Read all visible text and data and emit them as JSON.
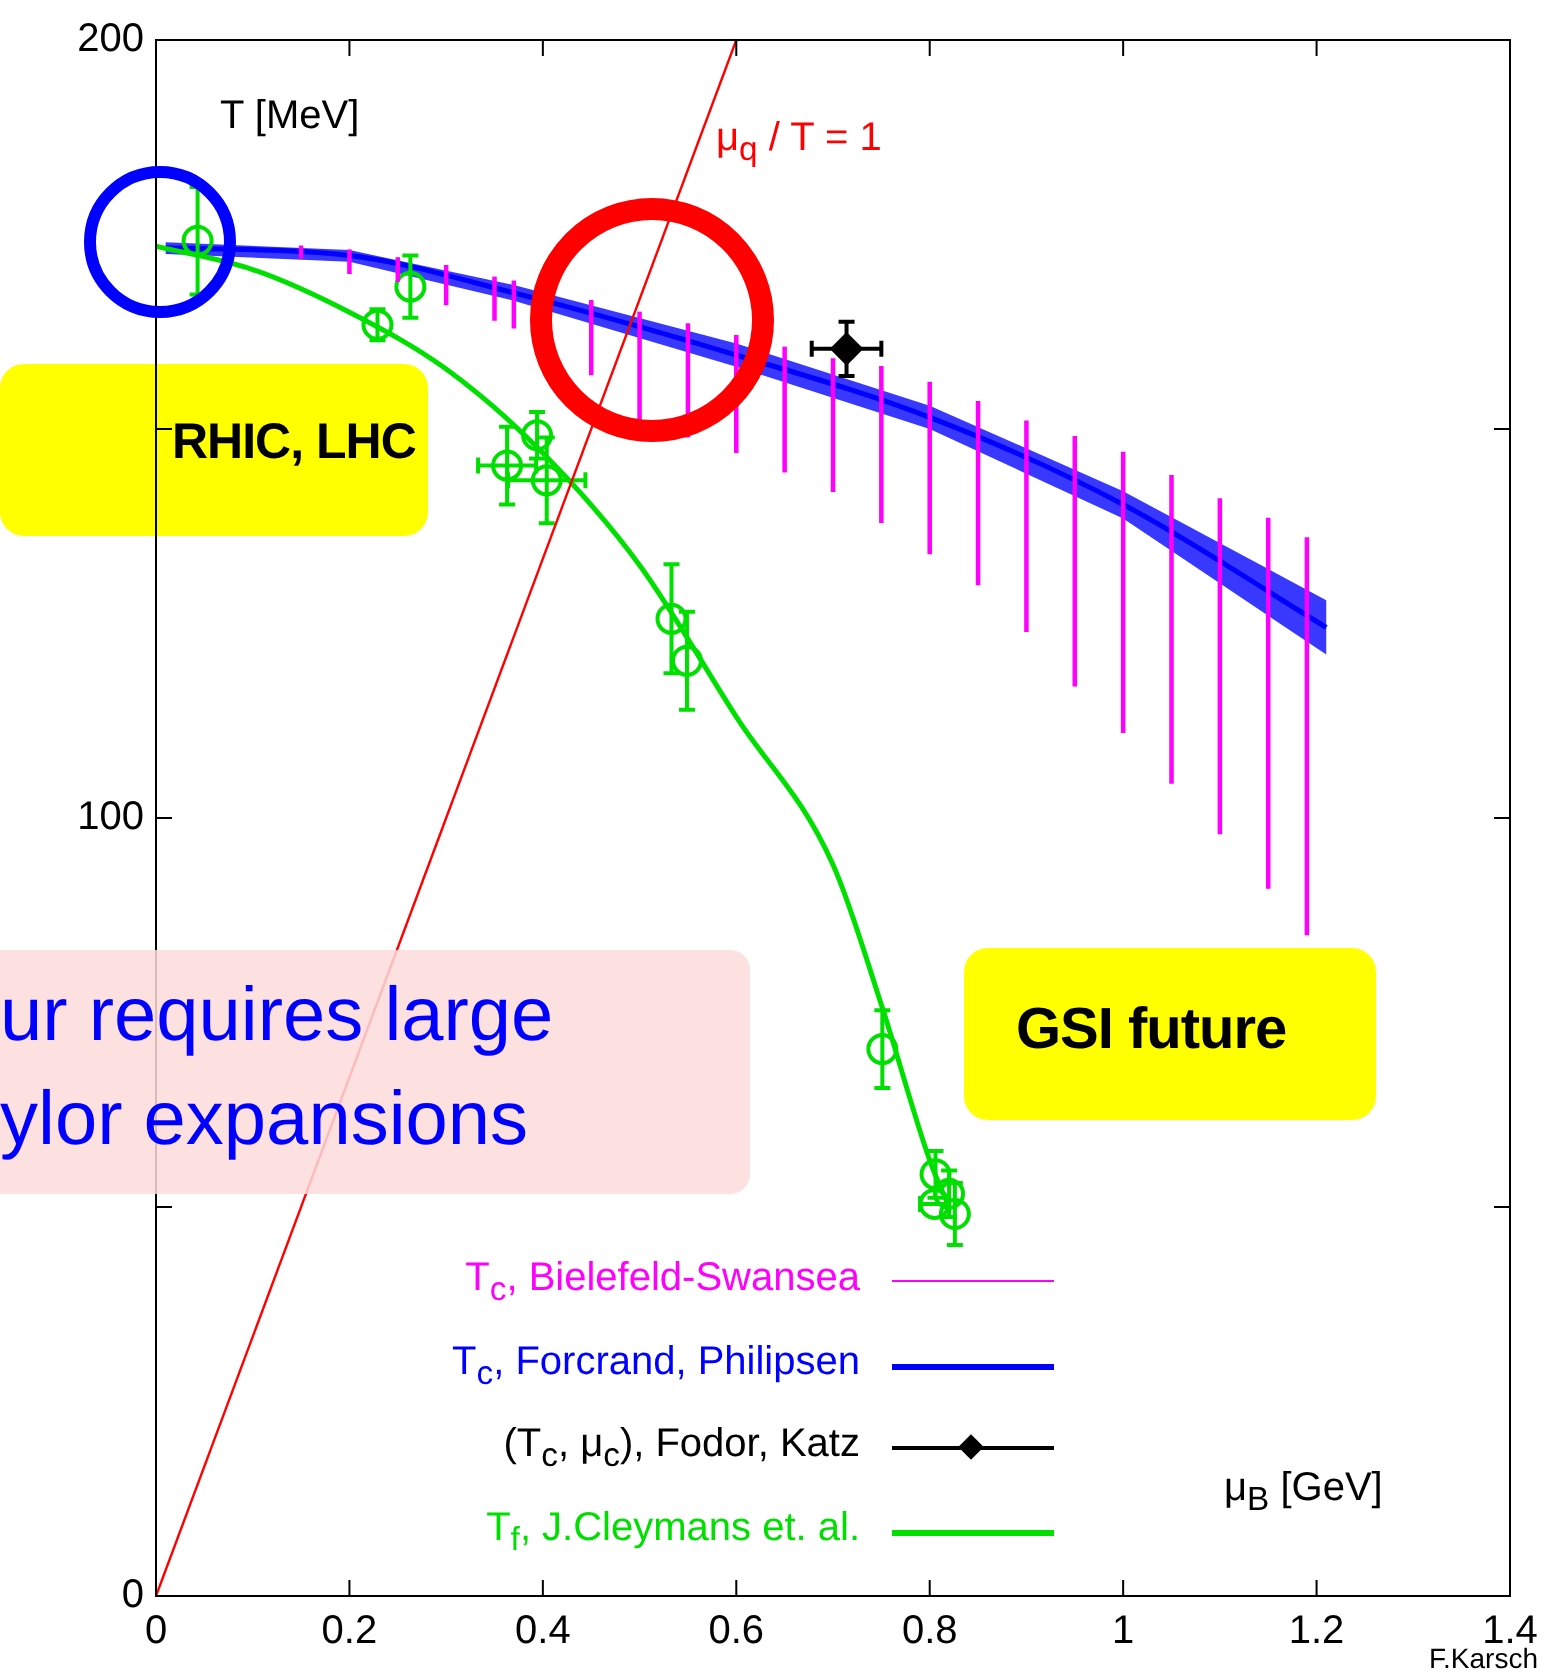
{
  "chart_data": {
    "type": "line",
    "xlabel": "μ$_{B}$ [GeV]",
    "ylabel": "T [MeV]",
    "xlim": [
      0,
      1.4
    ],
    "xticks": [
      0,
      0.2,
      0.4,
      0.6,
      0.8,
      1,
      1.2,
      1.4
    ],
    "ylim": [
      0,
      200
    ],
    "yticks": [
      0,
      {
        "value": 50,
        "label": null
      },
      100,
      {
        "value": 150,
        "label": null
      },
      200
    ],
    "grid": false,
    "legend": "bottom",
    "annotations": [
      "μ$_{q}$ / T = 1",
      "RHIC, LHC",
      "GSI future",
      "ur requires large",
      "ylor expansions",
      "F.Karsch"
    ],
    "series": [
      {
        "name": "T$_{c}$, Bielefeld-Swansea",
        "type": "bar",
        "color": "#ff00ff",
        "x": [
          0.15,
          0.2,
          0.25,
          0.3,
          0.35,
          0.37,
          0.45,
          0.5,
          0.55,
          0.6,
          0.65,
          0.7,
          0.75,
          0.8,
          0.85,
          0.9,
          0.95,
          1.0,
          1.05,
          1.1,
          1.15,
          1.19
        ],
        "base": [
          172,
          170,
          169,
          166,
          164,
          163,
          157,
          151,
          149,
          147,
          144.5,
          142,
          138,
          134,
          130,
          124,
          117,
          111,
          104.5,
          98,
          91,
          85
        ],
        "values": [
          1.5,
          3,
          3,
          5,
          5.5,
          6,
          9.5,
          14,
          14.5,
          15,
          16,
          17,
          20,
          22,
          23.5,
          27,
          32,
          36,
          39.5,
          43,
          47.5,
          51
        ]
      },
      {
        "name": "T$_{c}$, Forcrand, Philipsen",
        "color": "#0000ff",
        "x": [
          0.01,
          0.2,
          0.37,
          0.6,
          0.8,
          1.0,
          1.21
        ],
        "values": [
          173.3,
          172.3,
          167.5,
          159.5,
          151.5,
          140.3,
          124.5
        ],
        "upper": [
          174,
          173,
          168.5,
          161,
          153,
          142,
          128
        ],
        "lower": [
          172.5,
          171.5,
          166.5,
          158,
          150,
          138.5,
          121
        ]
      },
      {
        "name": "(T$_{c}$, μ$_{c}$), Fodor, Katz",
        "type": "scatter",
        "color": "#000000",
        "marker": "diamond",
        "x": [
          0.714
        ],
        "values": [
          160.3
        ],
        "errors": [
          3.5
        ],
        "xerrors": [
          0.036
        ]
      },
      {
        "name": "T$_{f}$, J.Cleymans et. al.",
        "color": "#00e000",
        "x": [
          0,
          0.1,
          0.2,
          0.3,
          0.4,
          0.5,
          0.6,
          0.7,
          0.75,
          0.8,
          0.82
        ],
        "values": [
          173.5,
          170.5,
          165,
          157.7,
          146.9,
          132.5,
          113,
          94,
          76,
          56,
          50
        ]
      },
      {
        "type": "scatter",
        "color": "#00e000",
        "marker": "circle",
        "x": [
          0.043,
          0.229,
          0.263,
          0.394,
          0.363,
          0.404,
          0.533,
          0.549,
          0.751,
          0.806,
          0.805,
          0.826,
          0.82
        ],
        "values": [
          174.2,
          163.4,
          168.3,
          149.2,
          145.3,
          143.4,
          125.6,
          120.2,
          70.3,
          54.2,
          50.4,
          49.1,
          51.7
        ],
        "errors": [
          6.9,
          2,
          4,
          3,
          5,
          5.5,
          7,
          6.3,
          5,
          3,
          null,
          4,
          3
        ],
        "xerrors": [
          null,
          null,
          null,
          null,
          0.03,
          0.04,
          null,
          null,
          null,
          null,
          0.015,
          null,
          null
        ]
      },
      {
        "color": "#ff0000",
        "x": [
          0,
          0.6
        ],
        "values": [
          0,
          200
        ]
      }
    ]
  }
}
